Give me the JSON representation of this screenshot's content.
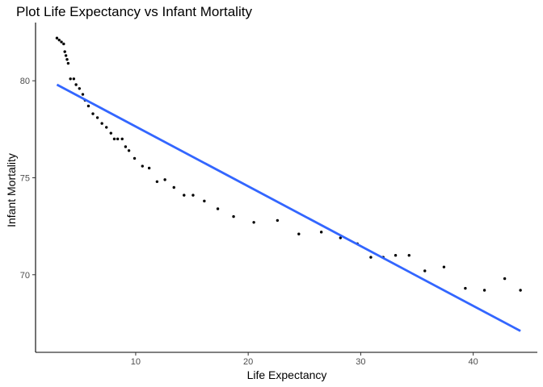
{
  "chart_data": {
    "type": "scatter",
    "title": "Plot Life Expectancy vs Infant Mortality",
    "xlabel": "Life Expectancy",
    "ylabel": "Infant Mortality",
    "xlim": [
      1.1,
      45.7
    ],
    "ylim": [
      66.0,
      83.0
    ],
    "x_ticks": [
      10,
      20,
      30,
      40
    ],
    "y_ticks": [
      70,
      75,
      80
    ],
    "grid": false,
    "legend": "none",
    "colors": {
      "points": "#000000",
      "fit_line": "#3366FF"
    },
    "points": [
      {
        "x": 3.0,
        "y": 82.2
      },
      {
        "x": 3.2,
        "y": 82.1
      },
      {
        "x": 3.4,
        "y": 82.0
      },
      {
        "x": 3.6,
        "y": 81.9
      },
      {
        "x": 3.7,
        "y": 81.5
      },
      {
        "x": 3.8,
        "y": 81.3
      },
      {
        "x": 3.9,
        "y": 81.1
      },
      {
        "x": 4.0,
        "y": 80.9
      },
      {
        "x": 4.2,
        "y": 80.1
      },
      {
        "x": 4.5,
        "y": 80.1
      },
      {
        "x": 4.7,
        "y": 79.8
      },
      {
        "x": 5.0,
        "y": 79.6
      },
      {
        "x": 5.3,
        "y": 79.3
      },
      {
        "x": 5.5,
        "y": 79.0
      },
      {
        "x": 5.8,
        "y": 78.7
      },
      {
        "x": 6.2,
        "y": 78.3
      },
      {
        "x": 6.6,
        "y": 78.1
      },
      {
        "x": 7.0,
        "y": 77.8
      },
      {
        "x": 7.4,
        "y": 77.6
      },
      {
        "x": 7.8,
        "y": 77.3
      },
      {
        "x": 8.1,
        "y": 77.0
      },
      {
        "x": 8.4,
        "y": 77.0
      },
      {
        "x": 8.8,
        "y": 77.0
      },
      {
        "x": 9.1,
        "y": 76.6
      },
      {
        "x": 9.4,
        "y": 76.4
      },
      {
        "x": 9.9,
        "y": 76.0
      },
      {
        "x": 10.6,
        "y": 75.6
      },
      {
        "x": 11.2,
        "y": 75.5
      },
      {
        "x": 11.9,
        "y": 74.8
      },
      {
        "x": 12.6,
        "y": 74.9
      },
      {
        "x": 13.4,
        "y": 74.5
      },
      {
        "x": 14.3,
        "y": 74.1
      },
      {
        "x": 15.1,
        "y": 74.1
      },
      {
        "x": 16.1,
        "y": 73.8
      },
      {
        "x": 17.3,
        "y": 73.4
      },
      {
        "x": 18.7,
        "y": 73.0
      },
      {
        "x": 20.5,
        "y": 72.7
      },
      {
        "x": 22.6,
        "y": 72.8
      },
      {
        "x": 24.5,
        "y": 72.1
      },
      {
        "x": 26.5,
        "y": 72.2
      },
      {
        "x": 28.2,
        "y": 71.9
      },
      {
        "x": 29.7,
        "y": 71.6
      },
      {
        "x": 30.9,
        "y": 70.9
      },
      {
        "x": 32.0,
        "y": 70.9
      },
      {
        "x": 33.1,
        "y": 71.0
      },
      {
        "x": 34.3,
        "y": 71.0
      },
      {
        "x": 35.7,
        "y": 70.2
      },
      {
        "x": 37.4,
        "y": 70.4
      },
      {
        "x": 39.3,
        "y": 69.3
      },
      {
        "x": 41.0,
        "y": 69.2
      },
      {
        "x": 42.8,
        "y": 69.8
      },
      {
        "x": 44.2,
        "y": 69.2
      }
    ],
    "fit_line": {
      "x": [
        3.0,
        44.2
      ],
      "y": [
        79.8,
        67.1
      ]
    }
  }
}
